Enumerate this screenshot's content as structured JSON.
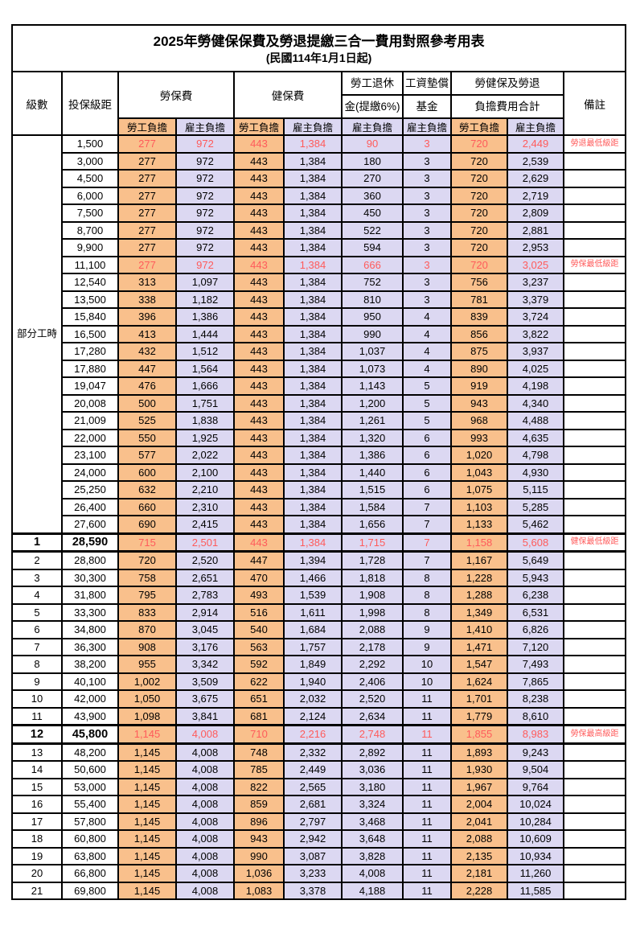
{
  "title": "2025年勞健保保費及勞退提繳三合一費用對照參考用表",
  "subtitle": "(民國114年1月1日起)",
  "colors": {
    "employee_share_bg": "#F9C08C",
    "employer_share_bg": "#DCD8F2",
    "highlight_red": "#FF5B5B",
    "border": "#000000"
  },
  "header": {
    "level": "級數",
    "bracket": "投保級距",
    "labor_insurance": "勞保費",
    "health_insurance": "健保費",
    "pension_line1": "勞工退休",
    "pension_line2": "金(提繳6%)",
    "fund_line1": "工資墊償",
    "fund_line2": "基金",
    "total_line1": "勞健保及勞退",
    "total_line2": "負擔費用合計",
    "note": "備註",
    "employee_share": "勞工負擔",
    "employer_share": "雇主負擔"
  },
  "part_time_label": "部分工時",
  "rows": [
    {
      "level": "部分工時",
      "bracket": "1,500",
      "labor_emp": "277",
      "labor_er": "972",
      "health_emp": "443",
      "health_er": "1,384",
      "pension_er": "90",
      "fund_er": "3",
      "total_emp": "720",
      "total_er": "2,449",
      "note": "勞退最低級距",
      "red": true,
      "bold": false,
      "thick": false
    },
    {
      "level": "",
      "bracket": "3,000",
      "labor_emp": "277",
      "labor_er": "972",
      "health_emp": "443",
      "health_er": "1,384",
      "pension_er": "180",
      "fund_er": "3",
      "total_emp": "720",
      "total_er": "2,539",
      "note": "",
      "red": false,
      "bold": false,
      "thick": false
    },
    {
      "level": "",
      "bracket": "4,500",
      "labor_emp": "277",
      "labor_er": "972",
      "health_emp": "443",
      "health_er": "1,384",
      "pension_er": "270",
      "fund_er": "3",
      "total_emp": "720",
      "total_er": "2,629",
      "note": "",
      "red": false,
      "bold": false,
      "thick": false
    },
    {
      "level": "",
      "bracket": "6,000",
      "labor_emp": "277",
      "labor_er": "972",
      "health_emp": "443",
      "health_er": "1,384",
      "pension_er": "360",
      "fund_er": "3",
      "total_emp": "720",
      "total_er": "2,719",
      "note": "",
      "red": false,
      "bold": false,
      "thick": false
    },
    {
      "level": "",
      "bracket": "7,500",
      "labor_emp": "277",
      "labor_er": "972",
      "health_emp": "443",
      "health_er": "1,384",
      "pension_er": "450",
      "fund_er": "3",
      "total_emp": "720",
      "total_er": "2,809",
      "note": "",
      "red": false,
      "bold": false,
      "thick": false
    },
    {
      "level": "",
      "bracket": "8,700",
      "labor_emp": "277",
      "labor_er": "972",
      "health_emp": "443",
      "health_er": "1,384",
      "pension_er": "522",
      "fund_er": "3",
      "total_emp": "720",
      "total_er": "2,881",
      "note": "",
      "red": false,
      "bold": false,
      "thick": false
    },
    {
      "level": "",
      "bracket": "9,900",
      "labor_emp": "277",
      "labor_er": "972",
      "health_emp": "443",
      "health_er": "1,384",
      "pension_er": "594",
      "fund_er": "3",
      "total_emp": "720",
      "total_er": "2,953",
      "note": "",
      "red": false,
      "bold": false,
      "thick": false
    },
    {
      "level": "",
      "bracket": "11,100",
      "labor_emp": "277",
      "labor_er": "972",
      "health_emp": "443",
      "health_er": "1,384",
      "pension_er": "666",
      "fund_er": "3",
      "total_emp": "720",
      "total_er": "3,025",
      "note": "勞保最低級距",
      "red": true,
      "bold": false,
      "thick": false
    },
    {
      "level": "",
      "bracket": "12,540",
      "labor_emp": "313",
      "labor_er": "1,097",
      "health_emp": "443",
      "health_er": "1,384",
      "pension_er": "752",
      "fund_er": "3",
      "total_emp": "756",
      "total_er": "3,237",
      "note": "",
      "red": false,
      "bold": false,
      "thick": false
    },
    {
      "level": "",
      "bracket": "13,500",
      "labor_emp": "338",
      "labor_er": "1,182",
      "health_emp": "443",
      "health_er": "1,384",
      "pension_er": "810",
      "fund_er": "3",
      "total_emp": "781",
      "total_er": "3,379",
      "note": "",
      "red": false,
      "bold": false,
      "thick": false
    },
    {
      "level": "",
      "bracket": "15,840",
      "labor_emp": "396",
      "labor_er": "1,386",
      "health_emp": "443",
      "health_er": "1,384",
      "pension_er": "950",
      "fund_er": "4",
      "total_emp": "839",
      "total_er": "3,724",
      "note": "",
      "red": false,
      "bold": false,
      "thick": false
    },
    {
      "level": "",
      "bracket": "16,500",
      "labor_emp": "413",
      "labor_er": "1,444",
      "health_emp": "443",
      "health_er": "1,384",
      "pension_er": "990",
      "fund_er": "4",
      "total_emp": "856",
      "total_er": "3,822",
      "note": "",
      "red": false,
      "bold": false,
      "thick": false
    },
    {
      "level": "",
      "bracket": "17,280",
      "labor_emp": "432",
      "labor_er": "1,512",
      "health_emp": "443",
      "health_er": "1,384",
      "pension_er": "1,037",
      "fund_er": "4",
      "total_emp": "875",
      "total_er": "3,937",
      "note": "",
      "red": false,
      "bold": false,
      "thick": false
    },
    {
      "level": "",
      "bracket": "17,880",
      "labor_emp": "447",
      "labor_er": "1,564",
      "health_emp": "443",
      "health_er": "1,384",
      "pension_er": "1,073",
      "fund_er": "4",
      "total_emp": "890",
      "total_er": "4,025",
      "note": "",
      "red": false,
      "bold": false,
      "thick": false
    },
    {
      "level": "",
      "bracket": "19,047",
      "labor_emp": "476",
      "labor_er": "1,666",
      "health_emp": "443",
      "health_er": "1,384",
      "pension_er": "1,143",
      "fund_er": "5",
      "total_emp": "919",
      "total_er": "4,198",
      "note": "",
      "red": false,
      "bold": false,
      "thick": false
    },
    {
      "level": "",
      "bracket": "20,008",
      "labor_emp": "500",
      "labor_er": "1,751",
      "health_emp": "443",
      "health_er": "1,384",
      "pension_er": "1,200",
      "fund_er": "5",
      "total_emp": "943",
      "total_er": "4,340",
      "note": "",
      "red": false,
      "bold": false,
      "thick": false
    },
    {
      "level": "",
      "bracket": "21,009",
      "labor_emp": "525",
      "labor_er": "1,838",
      "health_emp": "443",
      "health_er": "1,384",
      "pension_er": "1,261",
      "fund_er": "5",
      "total_emp": "968",
      "total_er": "4,488",
      "note": "",
      "red": false,
      "bold": false,
      "thick": false
    },
    {
      "level": "",
      "bracket": "22,000",
      "labor_emp": "550",
      "labor_er": "1,925",
      "health_emp": "443",
      "health_er": "1,384",
      "pension_er": "1,320",
      "fund_er": "6",
      "total_emp": "993",
      "total_er": "4,635",
      "note": "",
      "red": false,
      "bold": false,
      "thick": false
    },
    {
      "level": "",
      "bracket": "23,100",
      "labor_emp": "577",
      "labor_er": "2,022",
      "health_emp": "443",
      "health_er": "1,384",
      "pension_er": "1,386",
      "fund_er": "6",
      "total_emp": "1,020",
      "total_er": "4,798",
      "note": "",
      "red": false,
      "bold": false,
      "thick": false
    },
    {
      "level": "",
      "bracket": "24,000",
      "labor_emp": "600",
      "labor_er": "2,100",
      "health_emp": "443",
      "health_er": "1,384",
      "pension_er": "1,440",
      "fund_er": "6",
      "total_emp": "1,043",
      "total_er": "4,930",
      "note": "",
      "red": false,
      "bold": false,
      "thick": false
    },
    {
      "level": "",
      "bracket": "25,250",
      "labor_emp": "632",
      "labor_er": "2,210",
      "health_emp": "443",
      "health_er": "1,384",
      "pension_er": "1,515",
      "fund_er": "6",
      "total_emp": "1,075",
      "total_er": "5,115",
      "note": "",
      "red": false,
      "bold": false,
      "thick": false
    },
    {
      "level": "",
      "bracket": "26,400",
      "labor_emp": "660",
      "labor_er": "2,310",
      "health_emp": "443",
      "health_er": "1,384",
      "pension_er": "1,584",
      "fund_er": "7",
      "total_emp": "1,103",
      "total_er": "5,285",
      "note": "",
      "red": false,
      "bold": false,
      "thick": false
    },
    {
      "level": "",
      "bracket": "27,600",
      "labor_emp": "690",
      "labor_er": "2,415",
      "health_emp": "443",
      "health_er": "1,384",
      "pension_er": "1,656",
      "fund_er": "7",
      "total_emp": "1,133",
      "total_er": "5,462",
      "note": "",
      "red": false,
      "bold": false,
      "thick": false
    },
    {
      "level": "1",
      "bracket": "28,590",
      "labor_emp": "715",
      "labor_er": "2,501",
      "health_emp": "443",
      "health_er": "1,384",
      "pension_er": "1,715",
      "fund_er": "7",
      "total_emp": "1,158",
      "total_er": "5,608",
      "note": "健保最低級距",
      "red": true,
      "bold": true,
      "thick": true
    },
    {
      "level": "2",
      "bracket": "28,800",
      "labor_emp": "720",
      "labor_er": "2,520",
      "health_emp": "447",
      "health_er": "1,394",
      "pension_er": "1,728",
      "fund_er": "7",
      "total_emp": "1,167",
      "total_er": "5,649",
      "note": "",
      "red": false,
      "bold": false,
      "thick": false
    },
    {
      "level": "3",
      "bracket": "30,300",
      "labor_emp": "758",
      "labor_er": "2,651",
      "health_emp": "470",
      "health_er": "1,466",
      "pension_er": "1,818",
      "fund_er": "8",
      "total_emp": "1,228",
      "total_er": "5,943",
      "note": "",
      "red": false,
      "bold": false,
      "thick": false
    },
    {
      "level": "4",
      "bracket": "31,800",
      "labor_emp": "795",
      "labor_er": "2,783",
      "health_emp": "493",
      "health_er": "1,539",
      "pension_er": "1,908",
      "fund_er": "8",
      "total_emp": "1,288",
      "total_er": "6,238",
      "note": "",
      "red": false,
      "bold": false,
      "thick": false
    },
    {
      "level": "5",
      "bracket": "33,300",
      "labor_emp": "833",
      "labor_er": "2,914",
      "health_emp": "516",
      "health_er": "1,611",
      "pension_er": "1,998",
      "fund_er": "8",
      "total_emp": "1,349",
      "total_er": "6,531",
      "note": "",
      "red": false,
      "bold": false,
      "thick": false
    },
    {
      "level": "6",
      "bracket": "34,800",
      "labor_emp": "870",
      "labor_er": "3,045",
      "health_emp": "540",
      "health_er": "1,684",
      "pension_er": "2,088",
      "fund_er": "9",
      "total_emp": "1,410",
      "total_er": "6,826",
      "note": "",
      "red": false,
      "bold": false,
      "thick": false
    },
    {
      "level": "7",
      "bracket": "36,300",
      "labor_emp": "908",
      "labor_er": "3,176",
      "health_emp": "563",
      "health_er": "1,757",
      "pension_er": "2,178",
      "fund_er": "9",
      "total_emp": "1,471",
      "total_er": "7,120",
      "note": "",
      "red": false,
      "bold": false,
      "thick": false
    },
    {
      "level": "8",
      "bracket": "38,200",
      "labor_emp": "955",
      "labor_er": "3,342",
      "health_emp": "592",
      "health_er": "1,849",
      "pension_er": "2,292",
      "fund_er": "10",
      "total_emp": "1,547",
      "total_er": "7,493",
      "note": "",
      "red": false,
      "bold": false,
      "thick": false
    },
    {
      "level": "9",
      "bracket": "40,100",
      "labor_emp": "1,002",
      "labor_er": "3,509",
      "health_emp": "622",
      "health_er": "1,940",
      "pension_er": "2,406",
      "fund_er": "10",
      "total_emp": "1,624",
      "total_er": "7,865",
      "note": "",
      "red": false,
      "bold": false,
      "thick": false
    },
    {
      "level": "10",
      "bracket": "42,000",
      "labor_emp": "1,050",
      "labor_er": "3,675",
      "health_emp": "651",
      "health_er": "2,032",
      "pension_er": "2,520",
      "fund_er": "11",
      "total_emp": "1,701",
      "total_er": "8,238",
      "note": "",
      "red": false,
      "bold": false,
      "thick": false
    },
    {
      "level": "11",
      "bracket": "43,900",
      "labor_emp": "1,098",
      "labor_er": "3,841",
      "health_emp": "681",
      "health_er": "2,124",
      "pension_er": "2,634",
      "fund_er": "11",
      "total_emp": "1,779",
      "total_er": "8,610",
      "note": "",
      "red": false,
      "bold": false,
      "thick": false
    },
    {
      "level": "12",
      "bracket": "45,800",
      "labor_emp": "1,145",
      "labor_er": "4,008",
      "health_emp": "710",
      "health_er": "2,216",
      "pension_er": "2,748",
      "fund_er": "11",
      "total_emp": "1,855",
      "total_er": "8,983",
      "note": "勞保最高級距",
      "red": true,
      "bold": true,
      "thick": true
    },
    {
      "level": "13",
      "bracket": "48,200",
      "labor_emp": "1,145",
      "labor_er": "4,008",
      "health_emp": "748",
      "health_er": "2,332",
      "pension_er": "2,892",
      "fund_er": "11",
      "total_emp": "1,893",
      "total_er": "9,243",
      "note": "",
      "red": false,
      "bold": false,
      "thick": false
    },
    {
      "level": "14",
      "bracket": "50,600",
      "labor_emp": "1,145",
      "labor_er": "4,008",
      "health_emp": "785",
      "health_er": "2,449",
      "pension_er": "3,036",
      "fund_er": "11",
      "total_emp": "1,930",
      "total_er": "9,504",
      "note": "",
      "red": false,
      "bold": false,
      "thick": false
    },
    {
      "level": "15",
      "bracket": "53,000",
      "labor_emp": "1,145",
      "labor_er": "4,008",
      "health_emp": "822",
      "health_er": "2,565",
      "pension_er": "3,180",
      "fund_er": "11",
      "total_emp": "1,967",
      "total_er": "9,764",
      "note": "",
      "red": false,
      "bold": false,
      "thick": false
    },
    {
      "level": "16",
      "bracket": "55,400",
      "labor_emp": "1,145",
      "labor_er": "4,008",
      "health_emp": "859",
      "health_er": "2,681",
      "pension_er": "3,324",
      "fund_er": "11",
      "total_emp": "2,004",
      "total_er": "10,024",
      "note": "",
      "red": false,
      "bold": false,
      "thick": false
    },
    {
      "level": "17",
      "bracket": "57,800",
      "labor_emp": "1,145",
      "labor_er": "4,008",
      "health_emp": "896",
      "health_er": "2,797",
      "pension_er": "3,468",
      "fund_er": "11",
      "total_emp": "2,041",
      "total_er": "10,284",
      "note": "",
      "red": false,
      "bold": false,
      "thick": false
    },
    {
      "level": "18",
      "bracket": "60,800",
      "labor_emp": "1,145",
      "labor_er": "4,008",
      "health_emp": "943",
      "health_er": "2,942",
      "pension_er": "3,648",
      "fund_er": "11",
      "total_emp": "2,088",
      "total_er": "10,609",
      "note": "",
      "red": false,
      "bold": false,
      "thick": false
    },
    {
      "level": "19",
      "bracket": "63,800",
      "labor_emp": "1,145",
      "labor_er": "4,008",
      "health_emp": "990",
      "health_er": "3,087",
      "pension_er": "3,828",
      "fund_er": "11",
      "total_emp": "2,135",
      "total_er": "10,934",
      "note": "",
      "red": false,
      "bold": false,
      "thick": false
    },
    {
      "level": "20",
      "bracket": "66,800",
      "labor_emp": "1,145",
      "labor_er": "4,008",
      "health_emp": "1,036",
      "health_er": "3,233",
      "pension_er": "4,008",
      "fund_er": "11",
      "total_emp": "2,181",
      "total_er": "11,260",
      "note": "",
      "red": false,
      "bold": false,
      "thick": false
    },
    {
      "level": "21",
      "bracket": "69,800",
      "labor_emp": "1,145",
      "labor_er": "4,008",
      "health_emp": "1,083",
      "health_er": "3,378",
      "pension_er": "4,188",
      "fund_er": "11",
      "total_emp": "2,228",
      "total_er": "11,585",
      "note": "",
      "red": false,
      "bold": false,
      "thick": false
    }
  ]
}
